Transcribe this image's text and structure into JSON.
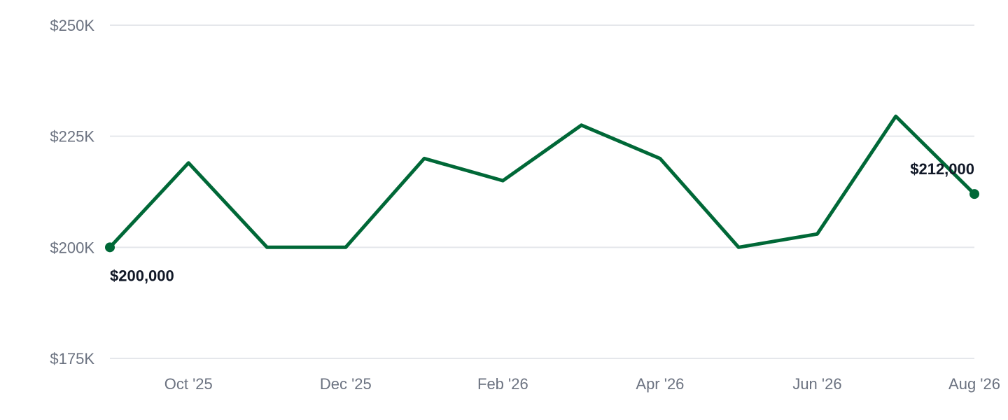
{
  "chart_data": {
    "type": "line",
    "title": "",
    "xlabel": "",
    "ylabel": "",
    "x": [
      "2025-09",
      "2025-10",
      "2025-11",
      "2025-12",
      "2026-01",
      "2026-02",
      "2026-03",
      "2026-04",
      "2026-05",
      "2026-06",
      "2026-07",
      "2026-08"
    ],
    "x_tick_labels": [
      {
        "x": "2025-10",
        "label": "Oct '25"
      },
      {
        "x": "2025-12",
        "label": "Dec '25"
      },
      {
        "x": "2026-02",
        "label": "Feb '26"
      },
      {
        "x": "2026-04",
        "label": "Apr '26"
      },
      {
        "x": "2026-06",
        "label": "Jun '26"
      },
      {
        "x": "2026-08",
        "label": "Aug '26"
      }
    ],
    "series": [
      {
        "values": [
          200000,
          219000,
          200000,
          200000,
          220000,
          215000,
          227500,
          220000,
          200000,
          203000,
          229500,
          212000
        ]
      }
    ],
    "ylim": [
      175000,
      250000
    ],
    "y_ticks": [
      {
        "value": 250000,
        "label": "$250K"
      },
      {
        "value": 225000,
        "label": "$225K"
      },
      {
        "value": 200000,
        "label": "$200K"
      },
      {
        "value": 175000,
        "label": "$175K"
      }
    ],
    "annotations": [
      {
        "x": "2025-09",
        "value": 200000,
        "label": "$200,000"
      },
      {
        "x": "2026-08",
        "value": 212000,
        "label": "$212,000"
      }
    ],
    "grid": true,
    "legend": "none",
    "line_color": "#006837"
  }
}
